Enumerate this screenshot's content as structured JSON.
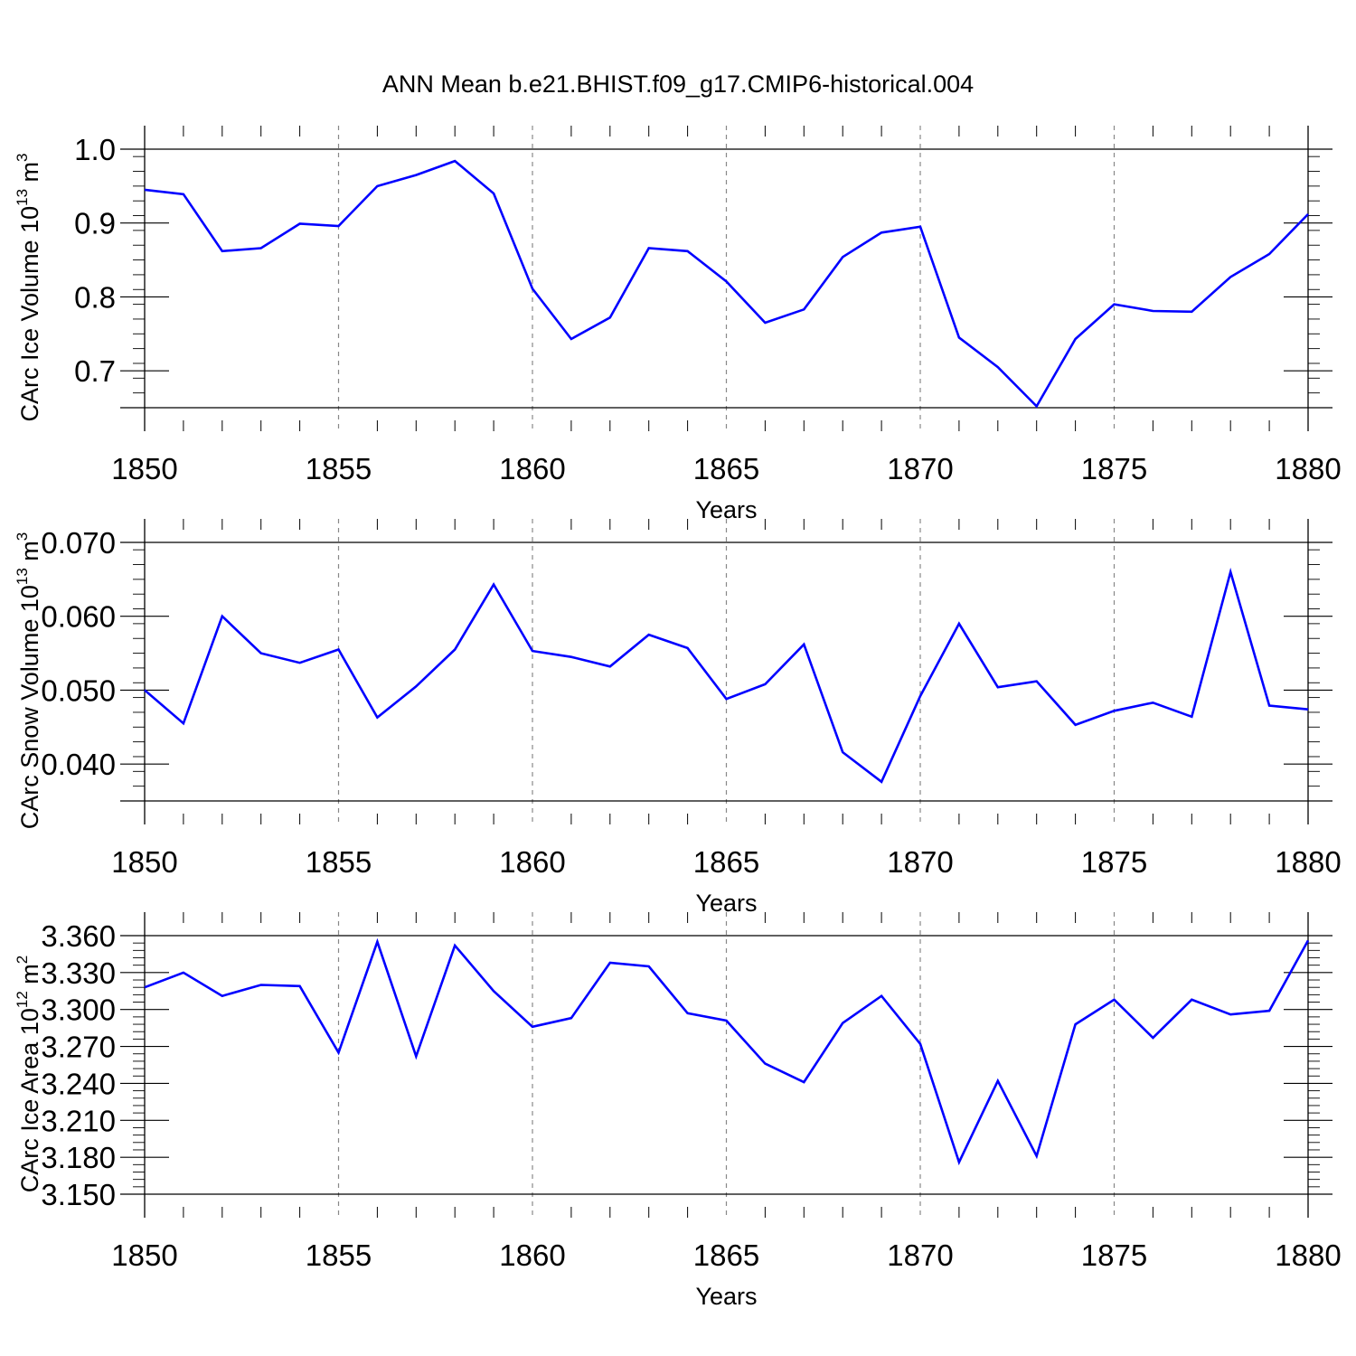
{
  "title": "ANN Mean b.e21.BHIST.f09_g17.CMIP6-historical.004",
  "colors": {
    "series": "#0000ff",
    "axis": "#000000",
    "grid": "#888888"
  },
  "chart_data": [
    {
      "type": "line",
      "title": "ANN Mean b.e21.BHIST.f09_g17.CMIP6-historical.004",
      "xlabel": "Years",
      "ylabel": "CArc Ice Volume 10",
      "ylabel_exp": "13",
      "ylabel_unit": "m",
      "ylabel_unit_exp": "3",
      "xlim": [
        1850,
        1880
      ],
      "ylim": [
        0.65,
        1.0
      ],
      "ymajor": [
        0.7,
        0.8,
        0.9,
        1.0
      ],
      "yminor_step": 0.02,
      "ytick_labels": [
        "0.7",
        "0.8",
        "0.9",
        "1.0"
      ],
      "xticks": [
        1850,
        1855,
        1860,
        1865,
        1870,
        1875,
        1880
      ],
      "xtick_labels": [
        "1850",
        "1855",
        "1860",
        "1865",
        "1870",
        "1875",
        "1880"
      ],
      "grid": "vertical-dashed-at-major-x",
      "x": [
        1850,
        1851,
        1852,
        1853,
        1854,
        1855,
        1856,
        1857,
        1858,
        1859,
        1860,
        1861,
        1862,
        1863,
        1864,
        1865,
        1866,
        1867,
        1868,
        1869,
        1870,
        1871,
        1872,
        1873,
        1874,
        1875,
        1876,
        1877,
        1878,
        1879,
        1880
      ],
      "values": [
        0.945,
        0.939,
        0.862,
        0.866,
        0.899,
        0.896,
        0.95,
        0.965,
        0.984,
        0.94,
        0.811,
        0.743,
        0.772,
        0.866,
        0.862,
        0.821,
        0.765,
        0.783,
        0.854,
        0.887,
        0.895,
        0.745,
        0.705,
        0.652,
        0.743,
        0.79,
        0.781,
        0.78,
        0.827,
        0.858,
        0.912
      ]
    },
    {
      "type": "line",
      "xlabel": "Years",
      "ylabel": "CArc Snow Volume 10",
      "ylabel_exp": "13",
      "ylabel_unit": "m",
      "ylabel_unit_exp": "3",
      "xlim": [
        1850,
        1880
      ],
      "ylim": [
        0.035,
        0.07
      ],
      "ymajor": [
        0.04,
        0.05,
        0.06,
        0.07
      ],
      "yminor_step": 0.002,
      "ytick_labels": [
        "0.040",
        "0.050",
        "0.060",
        "0.070"
      ],
      "xticks": [
        1850,
        1855,
        1860,
        1865,
        1870,
        1875,
        1880
      ],
      "xtick_labels": [
        "1850",
        "1855",
        "1860",
        "1865",
        "1870",
        "1875",
        "1880"
      ],
      "grid": "vertical-dashed-at-major-x",
      "x": [
        1850,
        1851,
        1852,
        1853,
        1854,
        1855,
        1856,
        1857,
        1858,
        1859,
        1860,
        1861,
        1862,
        1863,
        1864,
        1865,
        1866,
        1867,
        1868,
        1869,
        1870,
        1871,
        1872,
        1873,
        1874,
        1875,
        1876,
        1877,
        1878,
        1879,
        1880
      ],
      "values": [
        0.05,
        0.0455,
        0.06,
        0.055,
        0.0537,
        0.0555,
        0.0463,
        0.0505,
        0.0555,
        0.0643,
        0.0553,
        0.0545,
        0.0532,
        0.0575,
        0.0557,
        0.0488,
        0.0508,
        0.0562,
        0.0416,
        0.0376,
        0.0492,
        0.059,
        0.0504,
        0.0512,
        0.0453,
        0.0472,
        0.0483,
        0.0464,
        0.066,
        0.0479,
        0.0474
      ]
    },
    {
      "type": "line",
      "xlabel": "Years",
      "ylabel": "CArc Ice Area 10",
      "ylabel_exp": "12",
      "ylabel_unit": "m",
      "ylabel_unit_exp": "2",
      "xlim": [
        1850,
        1880
      ],
      "ylim": [
        3.15,
        3.36
      ],
      "ymajor": [
        3.15,
        3.18,
        3.21,
        3.24,
        3.27,
        3.3,
        3.33,
        3.36
      ],
      "yminor_step": 0.006,
      "ytick_labels": [
        "3.150",
        "3.180",
        "3.210",
        "3.240",
        "3.270",
        "3.300",
        "3.330",
        "3.360"
      ],
      "xticks": [
        1850,
        1855,
        1860,
        1865,
        1870,
        1875,
        1880
      ],
      "xtick_labels": [
        "1850",
        "1855",
        "1860",
        "1865",
        "1870",
        "1875",
        "1880"
      ],
      "grid": "vertical-dashed-at-major-x",
      "x": [
        1850,
        1851,
        1852,
        1853,
        1854,
        1855,
        1856,
        1857,
        1858,
        1859,
        1860,
        1861,
        1862,
        1863,
        1864,
        1865,
        1866,
        1867,
        1868,
        1869,
        1870,
        1871,
        1872,
        1873,
        1874,
        1875,
        1876,
        1877,
        1878,
        1879,
        1880
      ],
      "values": [
        3.318,
        3.33,
        3.311,
        3.32,
        3.319,
        3.265,
        3.355,
        3.262,
        3.352,
        3.315,
        3.286,
        3.293,
        3.338,
        3.335,
        3.297,
        3.291,
        3.256,
        3.241,
        3.289,
        3.311,
        3.272,
        3.176,
        3.242,
        3.181,
        3.288,
        3.308,
        3.277,
        3.308,
        3.296,
        3.299,
        3.356
      ]
    }
  ]
}
